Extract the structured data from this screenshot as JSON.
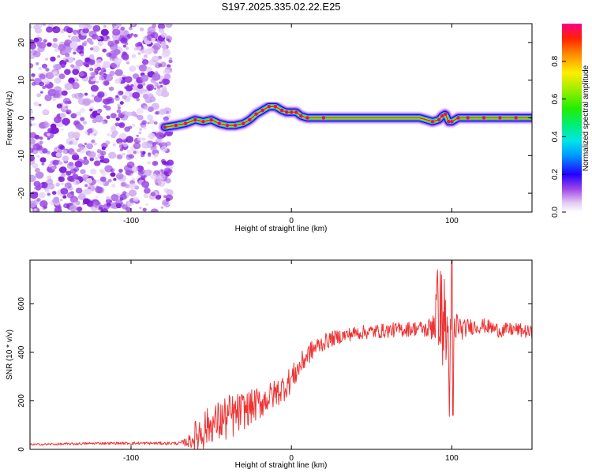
{
  "title": "S197.2025.335.02.22.E25",
  "chart_data": [
    {
      "type": "heatmap",
      "title": "S197.2025.335.02.22.E25",
      "xlabel": "Height of straight line (km)",
      "ylabel": "Frequency (Hz)",
      "xlim": [
        -163,
        150
      ],
      "ylim": [
        -25,
        25
      ],
      "xticks": [
        -100,
        0,
        100
      ],
      "yticks": [
        -20,
        -10,
        0,
        10,
        20
      ],
      "noise_region_km": [
        -163,
        -79
      ],
      "ridge_frequency": {
        "x": [
          -79,
          -72,
          -66,
          -60,
          -55,
          -50,
          -45,
          -40,
          -35,
          -30,
          -26,
          -22,
          -18,
          -14,
          -10,
          -6,
          -3,
          0,
          3,
          6,
          10,
          20,
          40,
          60,
          80,
          88,
          92,
          94,
          96,
          98,
          100,
          104,
          110,
          120,
          130,
          140,
          150
        ],
        "y": [
          -2.5,
          -2.0,
          -1.5,
          -0.5,
          -1.0,
          -0.5,
          -1.5,
          -2.0,
          -2.0,
          -1.5,
          -0.5,
          1.0,
          2.0,
          3.0,
          3.0,
          2.0,
          1.5,
          1.5,
          1.5,
          0.5,
          0.0,
          0.0,
          0.0,
          0.0,
          0.0,
          -1.0,
          -0.5,
          0.5,
          1.0,
          -1.0,
          -1.0,
          0.0,
          0.0,
          0.0,
          0.0,
          0.0,
          0.0
        ]
      },
      "colorbar": {
        "label": "Normalized spectral amplitude",
        "range": [
          0,
          1
        ],
        "ticks": [
          "0.0",
          "0.2",
          "0.4",
          "0.6",
          "0.8"
        ]
      }
    },
    {
      "type": "line",
      "xlabel": "Height of straight line (km)",
      "ylabel": "SNR (10 * v/v)",
      "xlim": [
        -163,
        150
      ],
      "ylim": [
        0,
        780
      ],
      "xticks": [
        -100,
        0,
        100
      ],
      "yticks": [
        0,
        200,
        400,
        600
      ],
      "series": [
        {
          "name": "SNR",
          "color": "#ee3333",
          "x": [
            -163,
            -140,
            -120,
            -100,
            -80,
            -70,
            -65,
            -62,
            -58,
            -55,
            -50,
            -45,
            -40,
            -35,
            -30,
            -25,
            -20,
            -15,
            -10,
            -5,
            0,
            5,
            10,
            15,
            20,
            25,
            30,
            40,
            50,
            60,
            70,
            80,
            85,
            88,
            90,
            92,
            94,
            96,
            98,
            99,
            100,
            101,
            102,
            104,
            106,
            110,
            120,
            130,
            140,
            150
          ],
          "y": [
            20,
            22,
            25,
            25,
            25,
            25,
            30,
            40,
            65,
            85,
            100,
            115,
            130,
            140,
            160,
            175,
            190,
            210,
            230,
            255,
            290,
            340,
            390,
            420,
            440,
            455,
            465,
            480,
            485,
            490,
            495,
            500,
            490,
            520,
            560,
            600,
            540,
            500,
            420,
            300,
            200,
            330,
            480,
            520,
            490,
            505,
            510,
            490,
            495,
            480
          ],
          "amplitude": [
            4,
            5,
            5,
            6,
            6,
            6,
            20,
            40,
            90,
            90,
            70,
            90,
            100,
            90,
            80,
            70,
            70,
            60,
            60,
            60,
            55,
            50,
            45,
            40,
            35,
            32,
            30,
            28,
            30,
            30,
            32,
            30,
            35,
            80,
            160,
            180,
            200,
            220,
            250,
            300,
            380,
            260,
            120,
            60,
            40,
            35,
            30,
            30,
            28,
            28
          ],
          "peak": {
            "x": 100,
            "max": 780,
            "min": 140
          }
        }
      ]
    }
  ]
}
